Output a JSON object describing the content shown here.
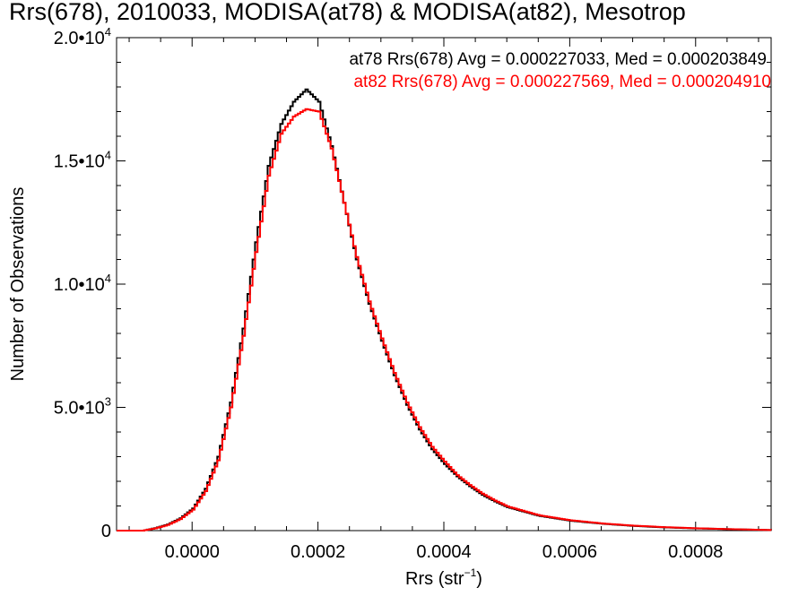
{
  "chart_data": {
    "type": "line",
    "title": "Rrs(678), 2010033, MODISA(at78) & MODISA(at82), Mesotrop",
    "xlabel_main": "Rrs (str",
    "xlabel_sup": "−1",
    "xlabel_close": ")",
    "ylabel": "Number of Observations",
    "xlim": [
      -0.00012,
      0.00092
    ],
    "ylim": [
      0,
      20000
    ],
    "xticks": [
      {
        "value": 0.0,
        "label": "0.0000"
      },
      {
        "value": 0.0002,
        "label": "0.0002"
      },
      {
        "value": 0.0004,
        "label": "0.0004"
      },
      {
        "value": 0.0006,
        "label": "0.0006"
      },
      {
        "value": 0.0008,
        "label": "0.0008"
      }
    ],
    "yticks": [
      {
        "value": 0,
        "label": "0",
        "sup": ""
      },
      {
        "value": 5000,
        "label": "5.0•10",
        "sup": "3"
      },
      {
        "value": 10000,
        "label": "1.0•10",
        "sup": "4"
      },
      {
        "value": 15000,
        "label": "1.5•10",
        "sup": "4"
      },
      {
        "value": 20000,
        "label": "2.0•10",
        "sup": "4"
      }
    ],
    "legend": [
      {
        "text": "at78 Rrs(678) Avg = 0.000227033, Med = 0.000203849",
        "color": "#000000"
      },
      {
        "text": "at82 Rrs(678) Avg = 0.000227569, Med = 0.000204910",
        "color": "#ff0000"
      }
    ],
    "legend_placement": "top-right",
    "series": [
      {
        "color": "#000000",
        "x": [
          -8e-05,
          -6e-05,
          -4e-05,
          -2e-05,
          0.0,
          2e-05,
          4e-05,
          6e-05,
          8e-05,
          0.0001,
          0.00012,
          0.00014,
          0.00016,
          0.00018,
          0.0002,
          0.00022,
          0.00024,
          0.00026,
          0.00028,
          0.0003,
          0.00032,
          0.00034,
          0.00036,
          0.00038,
          0.0004,
          0.00042,
          0.00044,
          0.00046,
          0.00048,
          0.0005,
          0.00055,
          0.0006,
          0.00065,
          0.0007,
          0.00075,
          0.0008,
          0.00085,
          0.0009,
          0.00092
        ],
        "values": [
          0,
          100,
          250,
          500,
          900,
          1700,
          3000,
          5200,
          8200,
          11700,
          14800,
          16500,
          17400,
          17900,
          17400,
          15600,
          13300,
          11000,
          9200,
          7700,
          6300,
          5100,
          4100,
          3300,
          2700,
          2200,
          1800,
          1450,
          1180,
          950,
          600,
          400,
          280,
          190,
          130,
          90,
          60,
          30,
          20
        ]
      },
      {
        "color": "#ff0000",
        "x": [
          -8e-05,
          -6e-05,
          -4e-05,
          -2e-05,
          0.0,
          2e-05,
          4e-05,
          6e-05,
          8e-05,
          0.0001,
          0.00012,
          0.00014,
          0.00016,
          0.00018,
          0.0002,
          0.00022,
          0.00024,
          0.00026,
          0.00028,
          0.0003,
          0.00032,
          0.00034,
          0.00036,
          0.00038,
          0.0004,
          0.00042,
          0.00044,
          0.00046,
          0.00048,
          0.0005,
          0.00055,
          0.0006,
          0.00065,
          0.0007,
          0.00075,
          0.0008,
          0.00085,
          0.0009,
          0.00092
        ],
        "values": [
          0,
          90,
          230,
          470,
          850,
          1600,
          2850,
          5000,
          7900,
          11300,
          14400,
          16100,
          16800,
          17100,
          17000,
          15500,
          13300,
          11100,
          9300,
          7800,
          6400,
          5200,
          4200,
          3400,
          2800,
          2250,
          1850,
          1500,
          1220,
          980,
          620,
          420,
          290,
          200,
          140,
          95,
          62,
          32,
          22
        ]
      }
    ]
  }
}
